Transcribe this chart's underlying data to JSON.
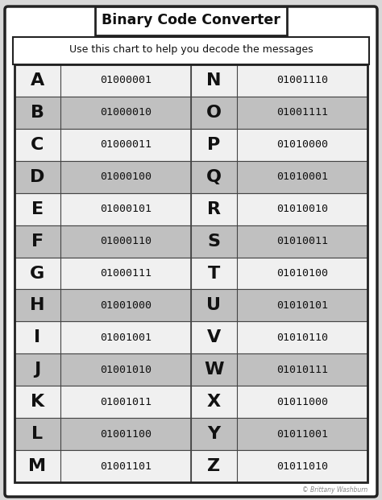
{
  "title": "Binary Code Converter",
  "subtitle": "Use this chart to help you decode the messages",
  "letters": [
    "A",
    "B",
    "C",
    "D",
    "E",
    "F",
    "G",
    "H",
    "I",
    "J",
    "K",
    "L",
    "M",
    "N",
    "O",
    "P",
    "Q",
    "R",
    "S",
    "T",
    "U",
    "V",
    "W",
    "X",
    "Y",
    "Z"
  ],
  "binary": [
    "01000001",
    "01000010",
    "01000011",
    "01000100",
    "01000101",
    "01000110",
    "01000111",
    "01001000",
    "01001001",
    "01001010",
    "01001011",
    "01001100",
    "01001101",
    "01001110",
    "01001111",
    "01010000",
    "01010001",
    "01010010",
    "01010011",
    "01010100",
    "01010101",
    "01010110",
    "01010111",
    "01011000",
    "01011001",
    "01011010"
  ],
  "bg_color": "#d8d8d8",
  "white": "#ffffff",
  "gray_row": "#c0c0c0",
  "white_row": "#f0f0f0",
  "border_color": "#222222",
  "grid_color": "#444444",
  "watermark": "© Brittany Washburn",
  "figsize": [
    4.74,
    6.21
  ],
  "dpi": 100
}
